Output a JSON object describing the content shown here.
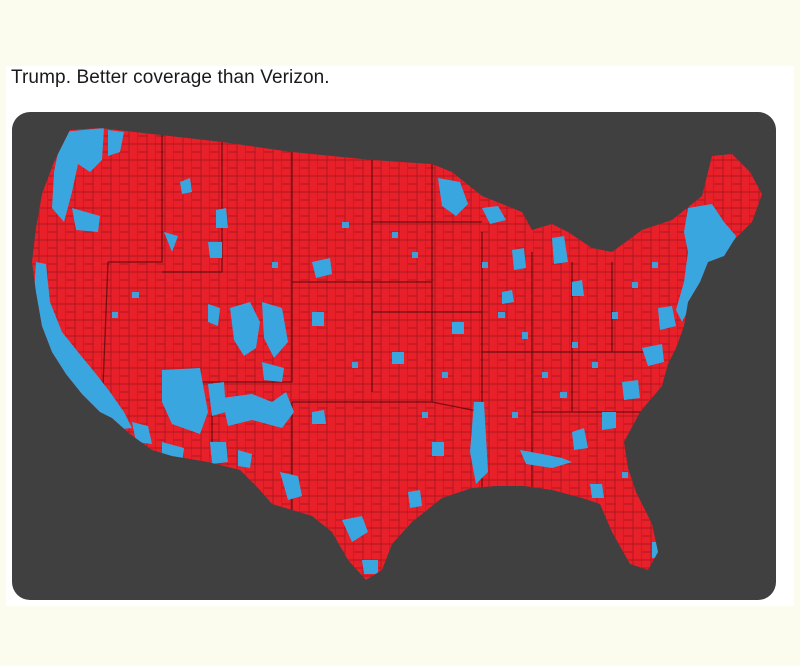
{
  "post": {
    "text": "Trump. Better coverage than Verizon."
  },
  "media": {
    "icon": "county-election-map-image",
    "colors": {
      "background": "#404040",
      "red_counties": "#e8202a",
      "blue_counties": "#3aa6e0",
      "county_lines": "#5a0c10"
    }
  }
}
